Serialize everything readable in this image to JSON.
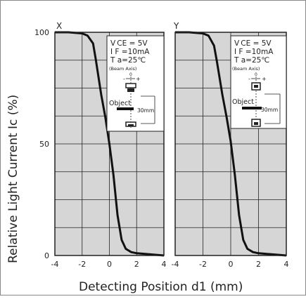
{
  "figure": {
    "ylabel": "Relative Light Current   Ic  (%)",
    "xlabel": "Detecting Position    d1  (mm)"
  },
  "chart_data": [
    {
      "type": "line",
      "panel_label": "X",
      "x_ticks": [
        "-4",
        "-2",
        "0",
        "2",
        "4"
      ],
      "y_ticks": [
        "0",
        "50",
        "100"
      ],
      "xlim": [
        -4,
        4
      ],
      "ylim": [
        0,
        100
      ],
      "grid": true,
      "x": [
        -4,
        -3,
        -2,
        -1.6,
        -1.2,
        -1.0,
        -0.6,
        -0.3,
        0,
        0.3,
        0.6,
        0.9,
        1.2,
        1.6,
        2,
        3,
        4
      ],
      "y": [
        100,
        100,
        99.5,
        98.5,
        95,
        88,
        72,
        62,
        50,
        36,
        18,
        7,
        3,
        1.5,
        1,
        0.5,
        0
      ],
      "conditions": {
        "vce": "V CE = 5V",
        "if": "I F =10mA",
        "ta": "T a=25℃",
        "beam": "(Beam Axis)",
        "zero": "0",
        "minus": "-",
        "plus": "+",
        "object": "Object",
        "distance": "30mm"
      }
    },
    {
      "type": "line",
      "panel_label": "Y",
      "x_ticks": [
        "-4",
        "-2",
        "0",
        "2",
        "4"
      ],
      "xlim": [
        -4,
        4
      ],
      "ylim": [
        0,
        100
      ],
      "grid": true,
      "x": [
        -4,
        -3,
        -2,
        -1.6,
        -1.2,
        -1.0,
        -0.6,
        -0.3,
        0,
        0.3,
        0.6,
        0.9,
        1.2,
        1.6,
        2,
        3,
        4
      ],
      "y": [
        100,
        100,
        99.5,
        98.5,
        94,
        87,
        72,
        62,
        51,
        36,
        18,
        7,
        3,
        1.5,
        1,
        0.5,
        0
      ],
      "conditions": {
        "vce": "V CE = 5V",
        "if": "I F =10mA",
        "ta": "T a=25℃",
        "beam": "(Beam Axis)",
        "zero": "0",
        "minus": "-",
        "plus": "+",
        "object": "Object",
        "distance": "30mm"
      }
    }
  ]
}
